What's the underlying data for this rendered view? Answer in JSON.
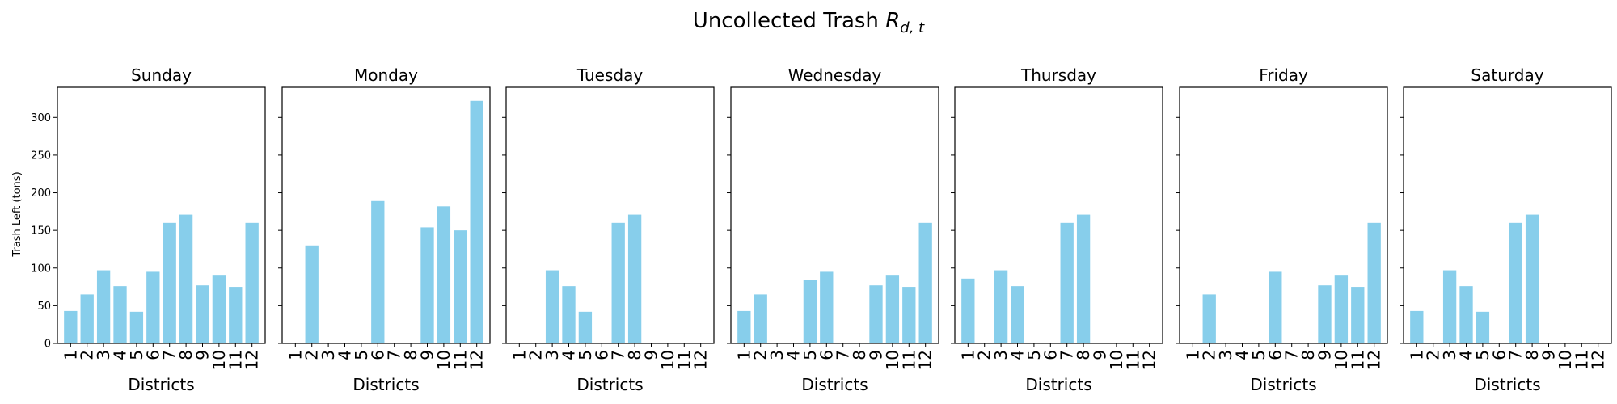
{
  "figure": {
    "title_prefix": "Uncollected Trash ",
    "title_var": "R",
    "title_sub": "d, t"
  },
  "chart_data": {
    "type": "bar",
    "ylabel": "Trash Left (tons)",
    "xlabel": "Districts",
    "categories": [
      "1",
      "2",
      "3",
      "4",
      "5",
      "6",
      "7",
      "8",
      "9",
      "10",
      "11",
      "12"
    ],
    "ylim": [
      0,
      340
    ],
    "yticks": [
      0,
      50,
      100,
      150,
      200,
      250,
      300
    ],
    "bar_color": "#87ceeb",
    "panels": [
      {
        "title": "Sunday",
        "values": [
          43,
          65,
          97,
          76,
          42,
          95,
          160,
          171,
          77,
          91,
          75,
          160
        ]
      },
      {
        "title": "Monday",
        "values": [
          0,
          130,
          0,
          0,
          0,
          189,
          0,
          0,
          154,
          182,
          150,
          322
        ]
      },
      {
        "title": "Tuesday",
        "values": [
          0,
          0,
          97,
          76,
          42,
          0,
          160,
          171,
          0,
          0,
          0,
          0
        ]
      },
      {
        "title": "Wednesday",
        "values": [
          43,
          65,
          0,
          0,
          84,
          95,
          0,
          0,
          77,
          91,
          75,
          160
        ]
      },
      {
        "title": "Thursday",
        "values": [
          86,
          0,
          97,
          76,
          0,
          0,
          160,
          171,
          0,
          0,
          0,
          0
        ]
      },
      {
        "title": "Friday",
        "values": [
          0,
          65,
          0,
          0,
          0,
          95,
          0,
          0,
          77,
          91,
          75,
          160
        ]
      },
      {
        "title": "Saturday",
        "values": [
          43,
          0,
          97,
          76,
          42,
          0,
          160,
          171,
          0,
          0,
          0,
          0
        ]
      }
    ]
  }
}
